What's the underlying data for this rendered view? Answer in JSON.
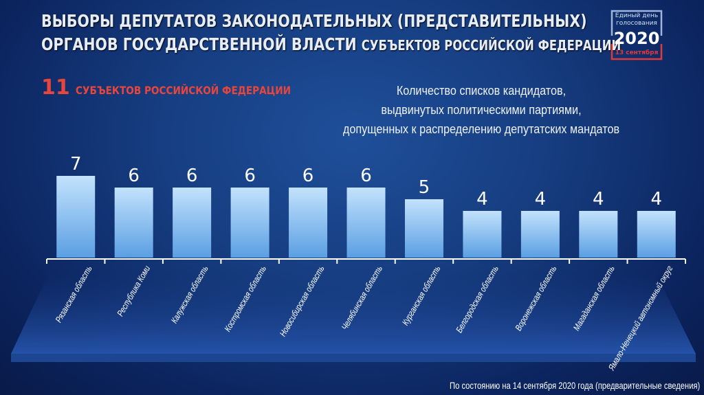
{
  "header": {
    "title_line1": "ВЫБОРЫ ДЕПУТАТОВ ЗАКОНОДАТЕЛЬНЫХ (ПРЕДСТАВИТЕЛЬНЫХ)",
    "title_line2_a": "ОРГАНОВ ГОСУДАРСТВЕННОЙ ВЛАСТИ",
    "title_line2_b": "СУБЪЕКТОВ РОССИЙСКОЙ ФЕДЕРАЦИИ"
  },
  "logo": {
    "line1": "Единый день",
    "line2": "голосования",
    "year": "2020",
    "date": "13 сентября"
  },
  "count": {
    "number": "11",
    "text": "СУБЪЕКТОВ  РОССИЙСКОЙ ФЕДЕРАЦИИ"
  },
  "footer": "По состоянию  на 14 сентября 2020 года (предварительные сведения)",
  "colors": {
    "bar_top": "#bfe0fb",
    "bar_bottom": "#5ea4e6",
    "accent": "#e8453c"
  },
  "chart_data": {
    "type": "bar",
    "title": "Количество списков кандидатов, выдвинутых политическими партиями, допущенных к распределению депутатских мандатов",
    "title_lines": [
      "Количество списков кандидатов,",
      "выдвинутых политическими партиями,",
      "допущенных к распределению депутатских мандатов"
    ],
    "categories": [
      "Рязанская область",
      "Республика Коми",
      "Калужская область",
      "Костромская область",
      "Новосибирская область",
      "Челябинская область",
      "Курганская область",
      "Белгородская область",
      "Воронежская область",
      "Магаданская область",
      "Ямало-Ненецкий автономный округ"
    ],
    "values": [
      7,
      6,
      6,
      6,
      6,
      6,
      5,
      4,
      4,
      4,
      4
    ],
    "ylim": [
      0,
      7
    ],
    "grid": false,
    "xlabel": "",
    "ylabel": ""
  }
}
